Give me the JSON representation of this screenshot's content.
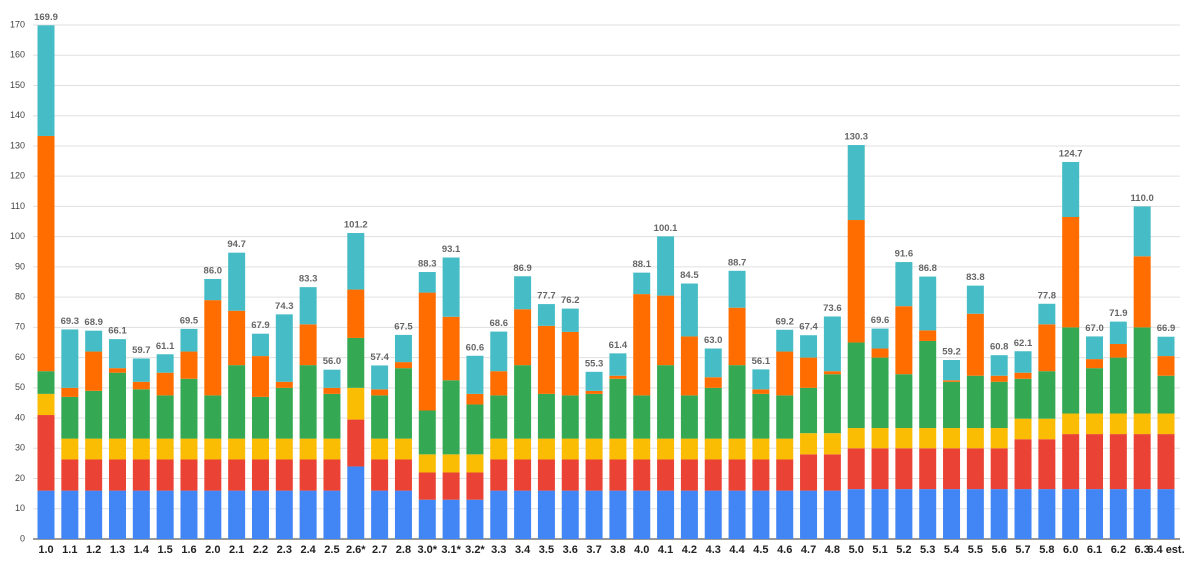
{
  "chart_data": {
    "type": "stacked_bar",
    "categories": [
      "1.0",
      "1.1",
      "1.2",
      "1.3",
      "1.4",
      "1.5",
      "1.6",
      "2.0",
      "2.1",
      "2.2",
      "2.3",
      "2.4",
      "2.5",
      "2.6*",
      "2.7",
      "2.8",
      "3.0*",
      "3.1*",
      "3.2*",
      "3.3",
      "3.4",
      "3.5",
      "3.6",
      "3.7",
      "3.8",
      "4.0",
      "4.1",
      "4.2",
      "4.3",
      "4.4",
      "4.5",
      "4.6",
      "4.7",
      "4.8",
      "5.0",
      "5.1",
      "5.2",
      "5.3",
      "5.4",
      "5.5",
      "5.6",
      "5.7",
      "5.8",
      "6.0",
      "6.1",
      "6.2",
      "6.3",
      "6.4 est."
    ],
    "series": [
      {
        "color": "#4285f4",
        "values": [
          16,
          16,
          16,
          16,
          16,
          16,
          16,
          16,
          16,
          16,
          16,
          16,
          16,
          24,
          16,
          16,
          13,
          13,
          13,
          16,
          16,
          16,
          16,
          16,
          16,
          16,
          16,
          16,
          16,
          16,
          16,
          16,
          16,
          16,
          16.5,
          16.5,
          16.5,
          16.5,
          16.5,
          16.5,
          16.5,
          16.5,
          16.5,
          16.5,
          16.5,
          16.5,
          16.5,
          16.5
        ]
      },
      {
        "color": "#ea4335",
        "values": [
          25,
          10.3,
          10.3,
          10.3,
          10.3,
          10.3,
          10.3,
          10.3,
          10.3,
          10.3,
          10.3,
          10.3,
          10.3,
          15.5,
          10.3,
          10.3,
          9,
          9,
          9,
          10.3,
          10.3,
          10.3,
          10.3,
          10.3,
          10.3,
          10.3,
          10.3,
          10.3,
          10.3,
          10.3,
          10.3,
          10.3,
          12,
          12,
          13.5,
          13.5,
          13.5,
          13.5,
          13.5,
          13.5,
          13.5,
          16.5,
          16.5,
          18.2,
          18.2,
          18.2,
          18.2,
          18.2
        ]
      },
      {
        "color": "#fbbc04",
        "values": [
          7,
          6.9,
          6.9,
          6.9,
          6.9,
          6.9,
          6.9,
          6.9,
          6.9,
          6.9,
          6.9,
          6.9,
          6.9,
          10.5,
          6.9,
          6.9,
          6,
          6,
          6,
          6.9,
          6.9,
          6.9,
          6.9,
          6.9,
          6.9,
          6.9,
          6.9,
          6.9,
          6.9,
          6.9,
          6.9,
          6.9,
          7,
          7,
          6.7,
          6.7,
          6.7,
          6.7,
          6.7,
          6.7,
          6.7,
          6.8,
          6.8,
          6.8,
          6.8,
          6.8,
          6.8,
          6.8
        ]
      },
      {
        "color": "#34a853",
        "values": [
          7.5,
          13.8,
          15.8,
          21.8,
          16.3,
          14.3,
          19.8,
          14.3,
          24.3,
          13.8,
          16.8,
          24.3,
          14.8,
          16.5,
          14.3,
          23.3,
          14.5,
          24.5,
          16.5,
          14.3,
          24.3,
          14.8,
          14.3,
          14.8,
          19.8,
          14.3,
          24.3,
          14.3,
          16.8,
          24.3,
          14.8,
          14.3,
          15,
          19.5,
          28.3,
          23.3,
          17.8,
          28.8,
          15.3,
          17.3,
          15.3,
          13.2,
          15.7,
          28.5,
          15,
          18.5,
          28.5,
          12.5
        ]
      },
      {
        "color": "#ff6d01",
        "values": [
          77.8,
          3,
          13,
          1.5,
          2.5,
          7.5,
          9,
          31.5,
          18,
          13.5,
          2,
          13.5,
          2,
          16,
          2,
          2,
          39,
          21,
          3.5,
          8,
          18.5,
          22.5,
          21,
          1,
          1,
          33.5,
          23,
          19.5,
          3.5,
          19,
          1.5,
          14.5,
          10,
          1,
          40.5,
          3,
          22.5,
          3.5,
          0.5,
          20.5,
          2,
          2,
          15.5,
          36.5,
          3,
          4.5,
          23.5,
          6.5
        ]
      },
      {
        "color": "#46bdc6",
        "values": [
          36.6,
          19.3,
          6.9,
          9.6,
          7.7,
          6.1,
          7.5,
          7,
          19.2,
          7.4,
          22.3,
          12.3,
          6,
          18.7,
          7.9,
          9,
          6.8,
          19.6,
          12.6,
          13.1,
          10.9,
          7.2,
          7.7,
          6.3,
          7.4,
          7.1,
          19.6,
          17.5,
          9.5,
          12.2,
          6.6,
          7.2,
          7.4,
          18.1,
          24.8,
          6.6,
          14.6,
          17.8,
          6.7,
          9.3,
          6.8,
          7.1,
          6.8,
          18.2,
          7.5,
          7.4,
          16.5,
          6.4
        ]
      }
    ],
    "totals": [
      169.9,
      69.3,
      68.9,
      66.1,
      59.7,
      61.1,
      69.5,
      86.0,
      94.7,
      67.9,
      74.3,
      83.3,
      56.0,
      101.2,
      57.4,
      67.5,
      88.3,
      93.1,
      60.6,
      68.6,
      86.9,
      77.7,
      76.2,
      55.3,
      61.4,
      88.1,
      100.1,
      84.5,
      63.0,
      88.7,
      56.1,
      69.2,
      67.4,
      73.6,
      130.3,
      69.6,
      91.6,
      86.8,
      59.2,
      83.8,
      60.8,
      62.1,
      77.8,
      124.7,
      67.0,
      71.9,
      110.0,
      66.9
    ],
    "total_labels": [
      "169.9",
      "69.3",
      "68.9",
      "66.1",
      "59.7",
      "61.1",
      "69.5",
      "86.0",
      "94.7",
      "67.9",
      "74.3",
      "83.3",
      "56.0",
      "101.2",
      "57.4",
      "67.5",
      "88.3",
      "93.1",
      "60.6",
      "68.6",
      "86.9",
      "77.7",
      "76.2",
      "55.3",
      "61.4",
      "88.1",
      "100.1",
      "84.5",
      "63.0",
      "88.7",
      "56.1",
      "69.2",
      "67.4",
      "73.6",
      "130.3",
      "69.6",
      "91.6",
      "86.8",
      "59.2",
      "83.8",
      "60.8",
      "62.1",
      "77.8",
      "124.7",
      "67.0",
      "71.9",
      "110.0",
      "66.9"
    ],
    "ylim": [
      0,
      170
    ],
    "yticks": [
      0,
      10,
      20,
      30,
      40,
      50,
      60,
      70,
      80,
      90,
      100,
      110,
      120,
      130,
      140,
      150,
      160,
      170
    ],
    "grid": true
  }
}
